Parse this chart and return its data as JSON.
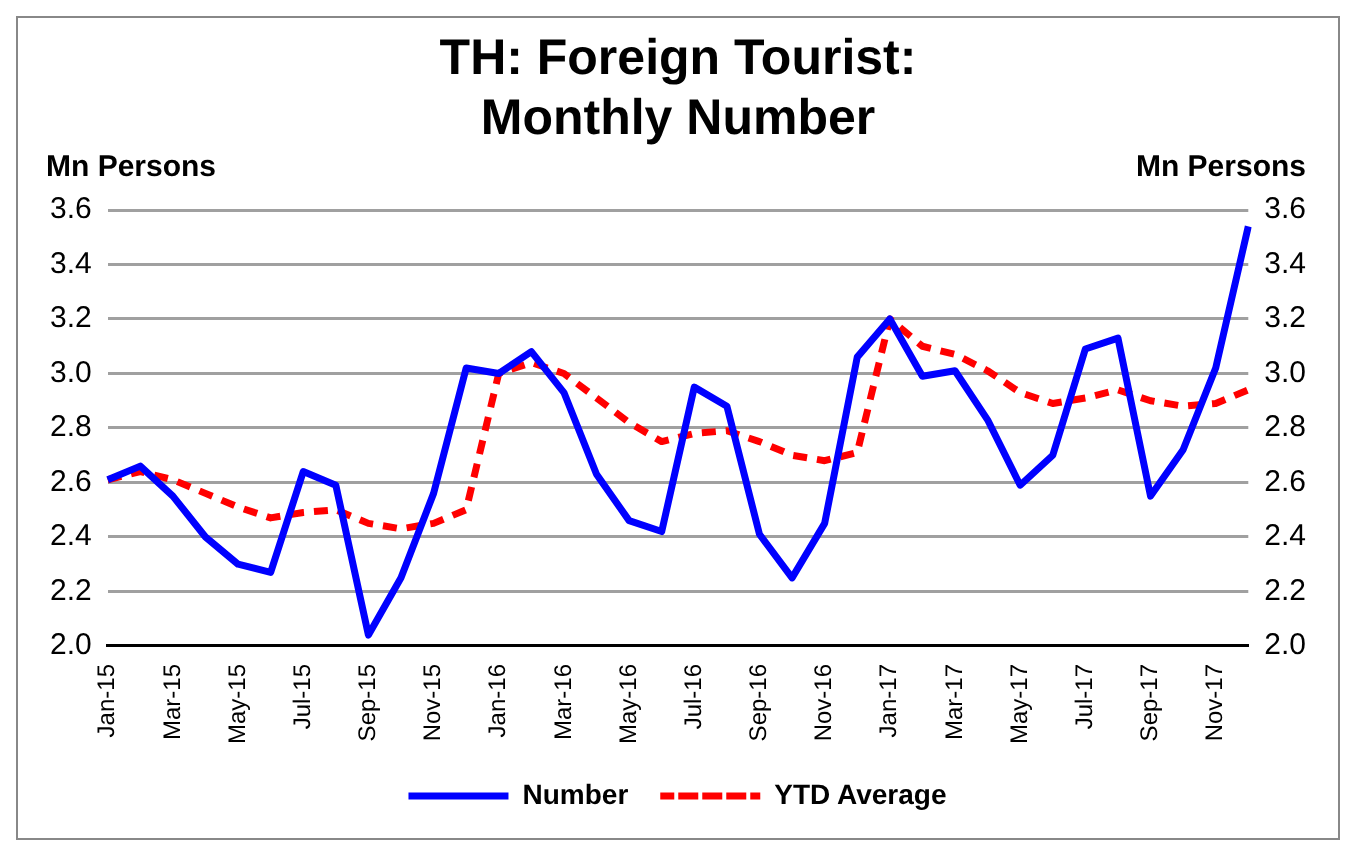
{
  "chart_data": {
    "type": "line",
    "title": "TH: Foreign Tourist:\nMonthly Number",
    "ylabel": "Mn Persons",
    "y2label": "Mn Persons",
    "categories": [
      "Jan-15",
      null,
      "Mar-15",
      null,
      "May-15",
      null,
      "Jul-15",
      null,
      "Sep-15",
      null,
      "Nov-15",
      null,
      "Jan-16",
      null,
      "Mar-16",
      null,
      "May-16",
      null,
      "Jul-16",
      null,
      "Sep-16",
      null,
      "Nov-16",
      null,
      "Jan-17",
      null,
      "Mar-17",
      null,
      "May-17",
      null,
      "Jul-17",
      null,
      "Sep-17",
      null,
      "Nov-17",
      null
    ],
    "series": [
      {
        "name": "Number",
        "color": "#0000ff",
        "line_style": "solid",
        "values": [
          2.61,
          2.66,
          2.55,
          2.4,
          2.3,
          2.27,
          2.64,
          2.59,
          2.04,
          2.25,
          2.56,
          3.02,
          3.0,
          3.08,
          2.93,
          2.63,
          2.46,
          2.42,
          2.95,
          2.88,
          2.41,
          2.25,
          2.45,
          3.06,
          3.2,
          2.99,
          3.01,
          2.83,
          2.59,
          2.7,
          3.09,
          3.13,
          2.55,
          2.72,
          3.02,
          3.54
        ]
      },
      {
        "name": "YTD Average",
        "color": "#ff0000",
        "line_style": "dashed",
        "values": [
          2.61,
          2.64,
          2.61,
          2.56,
          2.51,
          2.47,
          2.49,
          2.5,
          2.45,
          2.43,
          2.45,
          2.5,
          3.0,
          3.04,
          3.0,
          2.91,
          2.82,
          2.75,
          2.78,
          2.79,
          2.75,
          2.7,
          2.68,
          2.71,
          3.2,
          3.1,
          3.07,
          3.01,
          2.93,
          2.89,
          2.91,
          2.94,
          2.9,
          2.88,
          2.89,
          2.94
        ]
      }
    ],
    "ylim": [
      2.0,
      3.6
    ],
    "yticks": [
      {
        "value": 2.0,
        "label": "2.0"
      },
      {
        "value": 2.2,
        "label": "2.2"
      },
      {
        "value": 2.4,
        "label": "2.4"
      },
      {
        "value": 2.6,
        "label": "2.6"
      },
      {
        "value": 2.8,
        "label": "2.8"
      },
      {
        "value": 3.0,
        "label": "3.0"
      },
      {
        "value": 3.2,
        "label": "3.2"
      },
      {
        "value": 3.4,
        "label": "3.4"
      },
      {
        "value": 3.6,
        "label": "3.6"
      }
    ],
    "y2lim": [
      2.0,
      3.6
    ],
    "y2ticks": [
      {
        "value": 2.0,
        "label": "2.0"
      },
      {
        "value": 2.2,
        "label": "2.2"
      },
      {
        "value": 2.4,
        "label": "2.4"
      },
      {
        "value": 2.6,
        "label": "2.6"
      },
      {
        "value": 2.8,
        "label": "2.8"
      },
      {
        "value": 3.0,
        "label": "3.0"
      },
      {
        "value": 3.2,
        "label": "3.2"
      },
      {
        "value": 3.4,
        "label": "3.4"
      },
      {
        "value": 3.6,
        "label": "3.6"
      }
    ],
    "grid": "y",
    "legend": "bottom",
    "marker": "none"
  }
}
